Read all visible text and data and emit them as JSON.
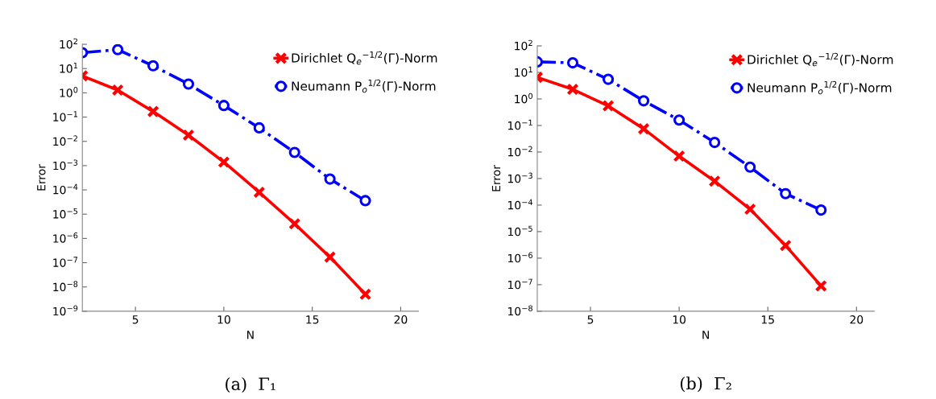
{
  "chart_data": [
    {
      "type": "line",
      "title": "(a)  Γ₁",
      "xlabel": "N",
      "ylabel": "Error",
      "log": "y",
      "grid": false,
      "legend": "top right",
      "x": [
        2,
        4,
        6,
        8,
        10,
        12,
        14,
        16,
        18
      ],
      "xlim": [
        2,
        21
      ],
      "xticks": [
        5,
        10,
        15,
        20
      ],
      "ylim": [
        1e-09,
        100
      ],
      "yticks": [
        {
          "value": 1e-09,
          "label": "10$^{−9}$"
        },
        {
          "value": 1e-08,
          "label": "10$^{−8}$"
        },
        {
          "value": 1e-07,
          "label": "10$^{−7}$"
        },
        {
          "value": 1e-06,
          "label": "10$^{−6}$"
        },
        {
          "value": 1e-05,
          "label": "10$^{−5}$"
        },
        {
          "value": 0.0001,
          "label": "10$^{−4}$"
        },
        {
          "value": 0.001,
          "label": "10$^{−3}$"
        },
        {
          "value": 0.01,
          "label": "10$^{−2}$"
        },
        {
          "value": 0.1,
          "label": "10$^{−1}$"
        },
        {
          "value": 1,
          "label": "10$^{0}$"
        },
        {
          "value": 10,
          "label": "10$^{1}$"
        },
        {
          "value": 100,
          "label": "10$^{2}$"
        }
      ],
      "series": [
        {
          "name": "Dirichlet Q$_{e}$$^{−1/2}$(Γ)-Norm",
          "color": "#ff0000",
          "marker": "cross",
          "line_style": "solid",
          "values": [
            5,
            1.3,
            0.17,
            0.018,
            0.0014,
            8e-05,
            4e-06,
            1.7e-07,
            5e-09
          ]
        },
        {
          "name": "Neumann P$_{o}$$^{1/2}$(Γ)-Norm",
          "color": "#0000ff",
          "marker": "circle",
          "line_style": "dashdot",
          "values": [
            45,
            60,
            13,
            2.3,
            0.3,
            0.036,
            0.0035,
            0.00028,
            3.6e-05
          ]
        }
      ]
    },
    {
      "type": "line",
      "title": "(b)  Γ₂",
      "xlabel": "N",
      "ylabel": "Error",
      "log": "y",
      "grid": false,
      "legend": "top right",
      "x": [
        2,
        4,
        6,
        8,
        10,
        12,
        14,
        16,
        18
      ],
      "xlim": [
        2,
        21
      ],
      "xticks": [
        5,
        10,
        15,
        20
      ],
      "ylim": [
        1e-08,
        100
      ],
      "yticks": [
        {
          "value": 1e-08,
          "label": "10$^{−8}$"
        },
        {
          "value": 1e-07,
          "label": "10$^{−7}$"
        },
        {
          "value": 1e-06,
          "label": "10$^{−6}$"
        },
        {
          "value": 1e-05,
          "label": "10$^{−5}$"
        },
        {
          "value": 0.0001,
          "label": "10$^{−4}$"
        },
        {
          "value": 0.001,
          "label": "10$^{−3}$"
        },
        {
          "value": 0.01,
          "label": "10$^{−2}$"
        },
        {
          "value": 0.1,
          "label": "10$^{−1}$"
        },
        {
          "value": 1,
          "label": "10$^{0}$"
        },
        {
          "value": 10,
          "label": "10$^{1}$"
        },
        {
          "value": 100,
          "label": "10$^{2}$"
        }
      ],
      "series": [
        {
          "name": "Dirichlet Q$_{e}$$^{−1/2}$(Γ)-Norm",
          "color": "#ff0000",
          "marker": "cross",
          "line_style": "solid",
          "values": [
            6.5,
            2.3,
            0.55,
            0.075,
            0.007,
            0.0008,
            7e-05,
            3e-06,
            9e-08
          ]
        },
        {
          "name": "Neumann P$_{o}$$^{1/2}$(Γ)-Norm",
          "color": "#0000ff",
          "marker": "circle",
          "line_style": "dashdot",
          "values": [
            25,
            23,
            5.5,
            0.85,
            0.16,
            0.023,
            0.0027,
            0.00027,
            6.5e-05
          ]
        }
      ]
    }
  ]
}
